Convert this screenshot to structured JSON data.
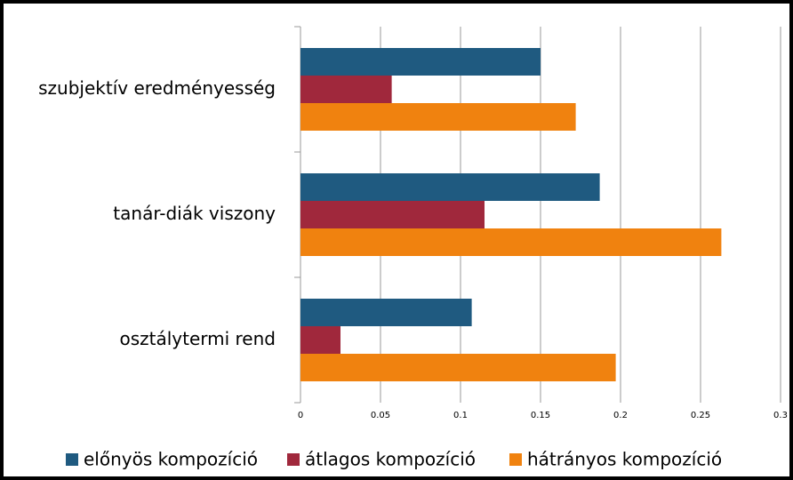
{
  "chart_data": {
    "type": "bar",
    "orientation": "horizontal",
    "categories": [
      "szubjektív eredményesség",
      "tanár-diák viszony",
      "osztálytermi rend"
    ],
    "series": [
      {
        "name": "előnyös kompozíció",
        "color": "#1f5a80",
        "values": [
          0.15,
          0.187,
          0.107
        ]
      },
      {
        "name": "átlagos kompozíció",
        "color": "#a0283c",
        "values": [
          0.057,
          0.115,
          0.025
        ]
      },
      {
        "name": "hátrányos kompozíció",
        "color": "#f0820f",
        "values": [
          0.172,
          0.263,
          0.197
        ]
      }
    ],
    "xlim": [
      0,
      0.3
    ],
    "xticks": [
      0,
      0.05,
      0.1,
      0.15,
      0.2,
      0.25,
      0.3
    ],
    "grid": true,
    "legend": "bottom"
  }
}
